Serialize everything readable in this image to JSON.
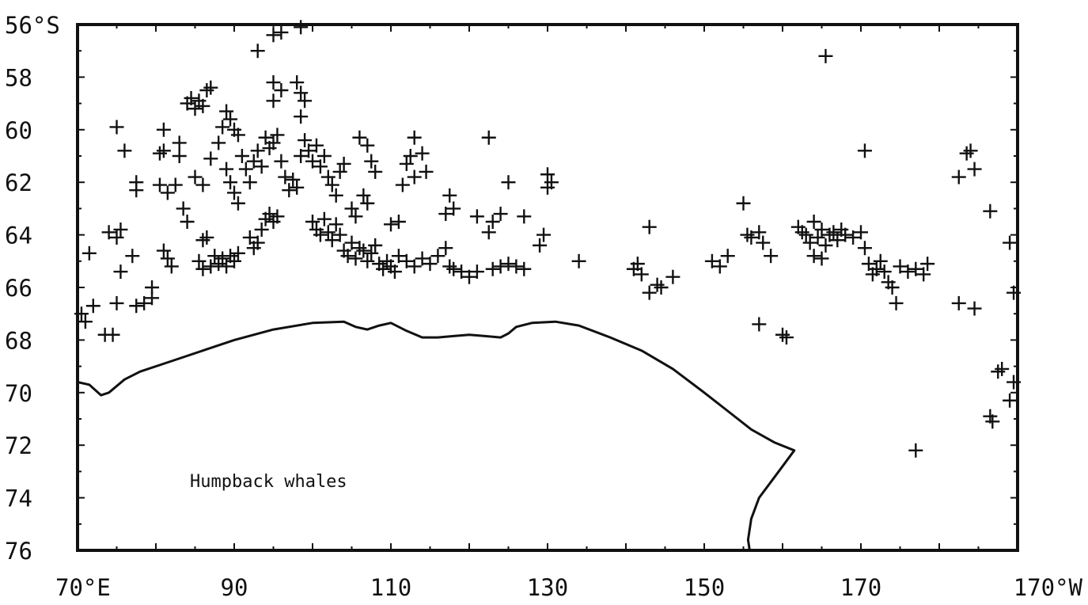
{
  "map": {
    "annotation": "Humpback whales",
    "lon_ticks": [
      {
        "label": "70°E",
        "lon": 70
      },
      {
        "label": "90",
        "lon": 90
      },
      {
        "label": "110",
        "lon": 110
      },
      {
        "label": "130",
        "lon": 130
      },
      {
        "label": "150",
        "lon": 150
      },
      {
        "label": "170",
        "lon": 170
      },
      {
        "label": "170°W",
        "lon": 190
      }
    ],
    "lat_ticks": [
      {
        "label": "56°S",
        "lat": 56
      },
      {
        "label": "58",
        "lat": 58
      },
      {
        "label": "60",
        "lat": 60
      },
      {
        "label": "62",
        "lat": 62
      },
      {
        "label": "64",
        "lat": 64
      },
      {
        "label": "66",
        "lat": 66
      },
      {
        "label": "68",
        "lat": 68
      },
      {
        "label": "70",
        "lat": 70
      },
      {
        "label": "72",
        "lat": 72
      },
      {
        "label": "74",
        "lat": 74
      },
      {
        "label": "76",
        "lat": 76
      }
    ],
    "lon_range_deg_east": [
      70,
      190
    ],
    "lat_range_deg_south": [
      56,
      76
    ],
    "coastline": [
      [
        70.0,
        69.6
      ],
      [
        71.5,
        69.7
      ],
      [
        73.0,
        70.1
      ],
      [
        74.0,
        70.0
      ],
      [
        76.0,
        69.5
      ],
      [
        78.0,
        69.2
      ],
      [
        82.0,
        68.8
      ],
      [
        86.0,
        68.4
      ],
      [
        90.0,
        68.0
      ],
      [
        95.0,
        67.6
      ],
      [
        100.0,
        67.35
      ],
      [
        104.0,
        67.3
      ],
      [
        105.5,
        67.5
      ],
      [
        107.0,
        67.6
      ],
      [
        108.5,
        67.45
      ],
      [
        110.0,
        67.35
      ],
      [
        112.0,
        67.65
      ],
      [
        114.0,
        67.9
      ],
      [
        116.0,
        67.9
      ],
      [
        118.0,
        67.85
      ],
      [
        120.0,
        67.8
      ],
      [
        122.0,
        67.85
      ],
      [
        124.0,
        67.9
      ],
      [
        125.0,
        67.75
      ],
      [
        126.0,
        67.5
      ],
      [
        128.0,
        67.35
      ],
      [
        131.0,
        67.3
      ],
      [
        134.0,
        67.45
      ],
      [
        138.0,
        67.9
      ],
      [
        142.0,
        68.4
      ],
      [
        146.0,
        69.1
      ],
      [
        150.0,
        70.0
      ],
      [
        153.0,
        70.7
      ],
      [
        156.0,
        71.4
      ],
      [
        159.0,
        71.9
      ],
      [
        161.5,
        72.2
      ],
      [
        160.0,
        72.8
      ],
      [
        158.5,
        73.4
      ],
      [
        157.0,
        74.0
      ],
      [
        156.0,
        74.8
      ],
      [
        155.6,
        75.6
      ],
      [
        155.8,
        76.0
      ]
    ],
    "sightings": [
      [
        70.5,
        67.0
      ],
      [
        71.0,
        67.3
      ],
      [
        72.0,
        66.7
      ],
      [
        71.5,
        64.7
      ],
      [
        74.0,
        63.9
      ],
      [
        73.5,
        67.8
      ],
      [
        74.5,
        67.8
      ],
      [
        75.0,
        64.1
      ],
      [
        75.5,
        63.8
      ],
      [
        75.0,
        59.9
      ],
      [
        76.0,
        60.8
      ],
      [
        75.5,
        65.4
      ],
      [
        75.0,
        66.6
      ],
      [
        77.0,
        64.8
      ],
      [
        77.5,
        62.0
      ],
      [
        77.5,
        62.3
      ],
      [
        77.5,
        66.7
      ],
      [
        78.5,
        66.6
      ],
      [
        79.5,
        66.4
      ],
      [
        79.5,
        66.0
      ],
      [
        80.5,
        60.9
      ],
      [
        81.0,
        60.8
      ],
      [
        81.0,
        60.0
      ],
      [
        80.5,
        62.1
      ],
      [
        81.5,
        62.4
      ],
      [
        82.5,
        62.1
      ],
      [
        83.0,
        61.0
      ],
      [
        83.0,
        60.5
      ],
      [
        81.0,
        64.6
      ],
      [
        81.5,
        64.9
      ],
      [
        82.0,
        65.2
      ],
      [
        83.5,
        63.0
      ],
      [
        84.0,
        63.5
      ],
      [
        84.0,
        59.0
      ],
      [
        84.5,
        58.8
      ],
      [
        85.0,
        59.2
      ],
      [
        85.5,
        58.9
      ],
      [
        86.0,
        59.1
      ],
      [
        86.5,
        58.5
      ],
      [
        87.0,
        58.4
      ],
      [
        85.0,
        61.8
      ],
      [
        86.0,
        62.1
      ],
      [
        86.0,
        64.2
      ],
      [
        86.5,
        64.1
      ],
      [
        85.5,
        65.0
      ],
      [
        86.0,
        65.3
      ],
      [
        87.0,
        65.2
      ],
      [
        87.5,
        64.8
      ],
      [
        88.0,
        65.1
      ],
      [
        88.5,
        64.9
      ],
      [
        89.0,
        65.2
      ],
      [
        89.5,
        64.8
      ],
      [
        90.0,
        65.0
      ],
      [
        90.5,
        64.7
      ],
      [
        87.0,
        61.1
      ],
      [
        88.0,
        60.5
      ],
      [
        88.5,
        59.9
      ],
      [
        89.0,
        59.3
      ],
      [
        89.5,
        59.6
      ],
      [
        90.0,
        60.0
      ],
      [
        90.5,
        60.2
      ],
      [
        89.0,
        61.5
      ],
      [
        89.5,
        62.0
      ],
      [
        90.0,
        62.4
      ],
      [
        90.5,
        62.8
      ],
      [
        91.0,
        61.0
      ],
      [
        91.5,
        61.5
      ],
      [
        92.0,
        62.0
      ],
      [
        92.5,
        61.2
      ],
      [
        93.0,
        60.8
      ],
      [
        93.5,
        61.4
      ],
      [
        94.0,
        60.3
      ],
      [
        94.5,
        60.7
      ],
      [
        95.0,
        60.5
      ],
      [
        95.5,
        60.2
      ],
      [
        92.0,
        64.1
      ],
      [
        92.5,
        64.5
      ],
      [
        93.0,
        64.3
      ],
      [
        93.5,
        63.8
      ],
      [
        94.0,
        63.4
      ],
      [
        94.5,
        63.2
      ],
      [
        95.0,
        63.5
      ],
      [
        95.5,
        63.3
      ],
      [
        93.0,
        57.0
      ],
      [
        95.0,
        56.4
      ],
      [
        96.0,
        56.3
      ],
      [
        98.5,
        56.1
      ],
      [
        95.0,
        58.2
      ],
      [
        95.0,
        58.9
      ],
      [
        96.0,
        58.5
      ],
      [
        98.0,
        58.2
      ],
      [
        98.5,
        58.6
      ],
      [
        99.0,
        58.9
      ],
      [
        98.5,
        59.5
      ],
      [
        96.0,
        61.2
      ],
      [
        96.5,
        61.8
      ],
      [
        97.0,
        62.3
      ],
      [
        97.5,
        61.9
      ],
      [
        98.0,
        62.2
      ],
      [
        98.5,
        61.0
      ],
      [
        99.0,
        60.4
      ],
      [
        99.5,
        60.8
      ],
      [
        100.0,
        61.2
      ],
      [
        100.5,
        60.6
      ],
      [
        101.0,
        61.4
      ],
      [
        101.5,
        61.0
      ],
      [
        102.0,
        61.8
      ],
      [
        102.5,
        62.1
      ],
      [
        103.0,
        62.5
      ],
      [
        103.5,
        61.6
      ],
      [
        100.0,
        63.5
      ],
      [
        100.5,
        63.8
      ],
      [
        101.0,
        64.0
      ],
      [
        101.5,
        63.4
      ],
      [
        102.0,
        63.9
      ],
      [
        102.5,
        64.2
      ],
      [
        103.0,
        63.6
      ],
      [
        103.5,
        64.0
      ],
      [
        104.0,
        64.6
      ],
      [
        104.5,
        64.8
      ],
      [
        105.0,
        64.3
      ],
      [
        105.5,
        64.9
      ],
      [
        106.0,
        64.5
      ],
      [
        106.5,
        64.6
      ],
      [
        107.0,
        65.0
      ],
      [
        107.5,
        64.7
      ],
      [
        108.0,
        64.4
      ],
      [
        108.5,
        65.1
      ],
      [
        109.0,
        65.3
      ],
      [
        109.5,
        65.0
      ],
      [
        110.0,
        65.2
      ],
      [
        110.5,
        65.4
      ],
      [
        111.0,
        64.8
      ],
      [
        106.5,
        62.5
      ],
      [
        107.0,
        62.8
      ],
      [
        105.0,
        63.0
      ],
      [
        105.5,
        63.3
      ],
      [
        106.0,
        60.3
      ],
      [
        107.0,
        60.6
      ],
      [
        107.5,
        61.2
      ],
      [
        108.0,
        61.6
      ],
      [
        104.0,
        61.3
      ],
      [
        110.0,
        63.6
      ],
      [
        111.0,
        63.5
      ],
      [
        111.5,
        62.1
      ],
      [
        112.0,
        61.3
      ],
      [
        113.0,
        60.3
      ],
      [
        112.5,
        61.0
      ],
      [
        114.0,
        60.9
      ],
      [
        113.0,
        61.8
      ],
      [
        114.5,
        61.6
      ],
      [
        112.0,
        65.0
      ],
      [
        113.0,
        65.2
      ],
      [
        114.0,
        64.9
      ],
      [
        115.0,
        65.1
      ],
      [
        116.0,
        64.8
      ],
      [
        117.0,
        64.5
      ],
      [
        117.5,
        65.2
      ],
      [
        118.0,
        65.3
      ],
      [
        119.0,
        65.4
      ],
      [
        120.0,
        65.6
      ],
      [
        121.0,
        65.4
      ],
      [
        117.0,
        63.2
      ],
      [
        118.0,
        63.0
      ],
      [
        117.5,
        62.5
      ],
      [
        121.0,
        63.3
      ],
      [
        122.5,
        63.9
      ],
      [
        123.0,
        63.5
      ],
      [
        124.0,
        63.2
      ],
      [
        122.5,
        60.3
      ],
      [
        125.0,
        62.0
      ],
      [
        123.0,
        65.3
      ],
      [
        124.0,
        65.2
      ],
      [
        125.0,
        65.1
      ],
      [
        126.0,
        65.2
      ],
      [
        127.0,
        65.3
      ],
      [
        127.0,
        63.3
      ],
      [
        129.0,
        64.4
      ],
      [
        129.5,
        64.0
      ],
      [
        130.0,
        62.2
      ],
      [
        130.5,
        62.0
      ],
      [
        130.0,
        61.7
      ],
      [
        134.0,
        65.0
      ],
      [
        141.0,
        65.3
      ],
      [
        141.5,
        65.1
      ],
      [
        142.0,
        65.5
      ],
      [
        143.0,
        63.7
      ],
      [
        143.0,
        66.2
      ],
      [
        144.0,
        65.9
      ],
      [
        144.5,
        66.0
      ],
      [
        146.0,
        65.6
      ],
      [
        151.0,
        65.0
      ],
      [
        152.0,
        65.2
      ],
      [
        153.0,
        64.8
      ],
      [
        155.0,
        62.8
      ],
      [
        155.5,
        64.0
      ],
      [
        156.0,
        64.1
      ],
      [
        157.0,
        63.9
      ],
      [
        157.5,
        64.3
      ],
      [
        158.5,
        64.8
      ],
      [
        157.0,
        67.4
      ],
      [
        160.0,
        67.8
      ],
      [
        160.5,
        67.9
      ],
      [
        162.0,
        63.7
      ],
      [
        162.5,
        63.9
      ],
      [
        163.0,
        64.0
      ],
      [
        163.5,
        64.3
      ],
      [
        164.0,
        63.5
      ],
      [
        164.5,
        64.1
      ],
      [
        165.0,
        63.8
      ],
      [
        165.5,
        64.4
      ],
      [
        166.0,
        64.0
      ],
      [
        166.5,
        63.9
      ],
      [
        167.0,
        64.2
      ],
      [
        167.5,
        63.8
      ],
      [
        168.0,
        64.0
      ],
      [
        169.0,
        64.1
      ],
      [
        164.0,
        64.8
      ],
      [
        165.0,
        64.9
      ],
      [
        165.5,
        57.2
      ],
      [
        170.5,
        60.8
      ],
      [
        170.0,
        63.9
      ],
      [
        170.5,
        64.5
      ],
      [
        171.0,
        65.1
      ],
      [
        171.5,
        65.5
      ],
      [
        172.0,
        65.3
      ],
      [
        172.5,
        65.0
      ],
      [
        173.0,
        65.4
      ],
      [
        173.5,
        65.8
      ],
      [
        174.0,
        66.0
      ],
      [
        174.5,
        66.6
      ],
      [
        175.0,
        65.2
      ],
      [
        176.0,
        65.4
      ],
      [
        177.0,
        65.3
      ],
      [
        178.0,
        65.5
      ],
      [
        178.5,
        65.1
      ],
      [
        177.0,
        72.2
      ],
      [
        183.5,
        60.9
      ],
      [
        184.0,
        60.8
      ],
      [
        184.5,
        61.5
      ],
      [
        182.5,
        61.8
      ],
      [
        182.5,
        66.6
      ],
      [
        184.5,
        66.8
      ],
      [
        186.5,
        63.1
      ],
      [
        189.0,
        64.3
      ],
      [
        189.5,
        66.2
      ],
      [
        187.5,
        69.2
      ],
      [
        188.0,
        69.1
      ],
      [
        189.0,
        70.3
      ],
      [
        189.5,
        69.6
      ],
      [
        186.5,
        70.9
      ],
      [
        186.8,
        71.1
      ]
    ]
  }
}
